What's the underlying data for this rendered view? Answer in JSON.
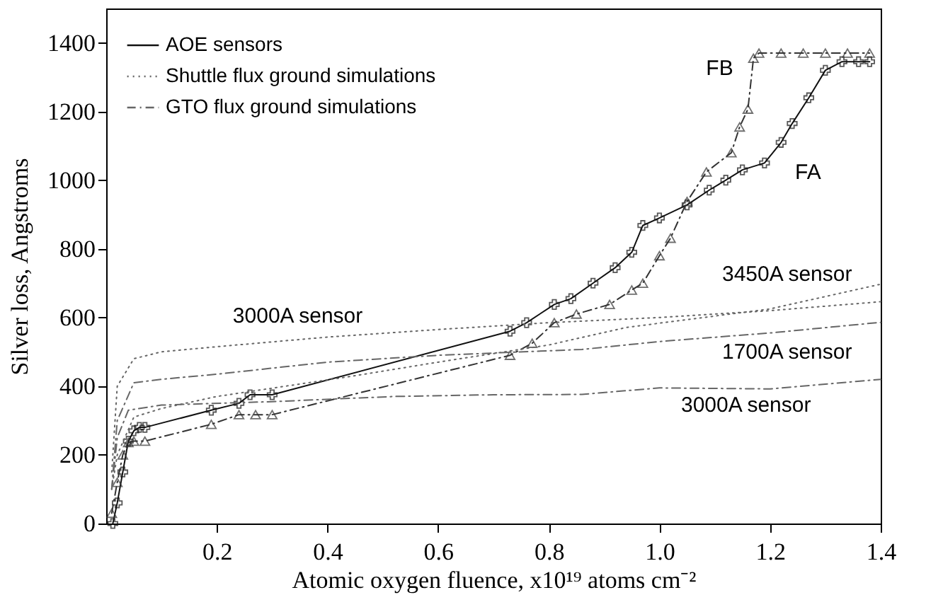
{
  "chart_data": {
    "type": "line",
    "xlabel": "Atomic oxygen fluence, x10¹⁹ atoms cm⁻²",
    "ylabel": "Silver loss, Angstroms",
    "xlim": [
      0,
      1.4
    ],
    "xticks": [
      0.2,
      0.4,
      0.6,
      0.8,
      {
        "value": 1,
        "label": "1.0"
      },
      1.2,
      1.4
    ],
    "ylim": [
      0,
      1500
    ],
    "yticks": [
      0,
      200,
      400,
      600,
      800,
      1000,
      1200,
      1400
    ],
    "grid": false,
    "legend": "top left",
    "series": [
      {
        "name": "AOE sensors",
        "color": "#111111",
        "marker": "cross",
        "line_style": "solid",
        "x": [
          0.012,
          0.02,
          0.03,
          0.04,
          0.05,
          0.06,
          0.07,
          0.19,
          0.24,
          0.26,
          0.3,
          0.73,
          0.76,
          0.81,
          0.84,
          0.88,
          0.92,
          0.95,
          0.97,
          1.0,
          1.05,
          1.09,
          1.12,
          1.15,
          1.19,
          1.22,
          1.24,
          1.27,
          1.3,
          1.33,
          1.36,
          1.38
        ],
        "values": [
          0,
          60,
          150,
          240,
          270,
          280,
          280,
          330,
          350,
          375,
          375,
          560,
          585,
          638,
          655,
          700,
          745,
          790,
          868,
          890,
          928,
          971,
          1000,
          1030,
          1050,
          1110,
          1165,
          1240,
          1320,
          1345,
          1345,
          1345
        ]
      },
      {
        "color": "#333333",
        "marker": "triangle",
        "line_style": "dashed",
        "x": [
          0.01,
          0.02,
          0.03,
          0.04,
          0.05,
          0.07,
          0.19,
          0.24,
          0.27,
          0.3,
          0.73,
          0.77,
          0.81,
          0.85,
          0.91,
          0.95,
          0.97,
          1.0,
          1.02,
          1.05,
          1.085,
          1.13,
          1.145,
          1.16,
          1.17,
          1.18,
          1.22,
          1.26,
          1.3,
          1.34,
          1.38
        ],
        "values": [
          30,
          120,
          200,
          236,
          240,
          240,
          289,
          317,
          317,
          317,
          490,
          525,
          585,
          610,
          638,
          680,
          700,
          780,
          831,
          938,
          1024,
          1080,
          1155,
          1207,
          1355,
          1370,
          1370,
          1370,
          1370,
          1370,
          1370
        ]
      },
      {
        "name": "Shuttle flux ground simulations",
        "color": "#666666",
        "marker": "none",
        "line_style": "dotted",
        "x": [
          0.01,
          0.02,
          0.05,
          0.1,
          0.2,
          0.4,
          0.6,
          0.8,
          1.0,
          1.2,
          1.4
        ],
        "values": [
          150,
          400,
          480,
          500,
          515,
          543,
          565,
          585,
          600,
          620,
          646
        ]
      },
      {
        "color": "#666666",
        "marker": "none",
        "line_style": "dotted",
        "x": [
          0.01,
          0.02,
          0.05,
          0.1,
          0.2,
          0.44,
          0.6,
          0.8,
          0.94,
          1.2,
          1.4
        ],
        "values": [
          100,
          200,
          310,
          335,
          370,
          428,
          470,
          520,
          571,
          625,
          697
        ]
      },
      {
        "name": "GTO flux ground simulations",
        "color": "#666666",
        "marker": "none",
        "line_style": "dashed",
        "x": [
          0.01,
          0.02,
          0.05,
          0.1,
          0.2,
          0.4,
          0.6,
          0.86,
          1.0,
          1.2,
          1.4
        ],
        "values": [
          100,
          300,
          410,
          420,
          435,
          470,
          490,
          507,
          530,
          555,
          586
        ]
      },
      {
        "color": "#666666",
        "marker": "none",
        "line_style": "dashed",
        "x": [
          0.01,
          0.02,
          0.04,
          0.1,
          0.3,
          0.52,
          0.7,
          0.86,
          1.0,
          1.2,
          1.4
        ],
        "values": [
          100,
          250,
          330,
          345,
          355,
          370,
          375,
          376,
          395,
          392,
          420
        ]
      }
    ],
    "annotations": [
      {
        "text": "3000A sensor",
        "x": 0.4,
        "y": 543
      },
      {
        "text": "3450A sensor",
        "x": 1.2,
        "y": 625
      },
      {
        "text": "1700A sensor",
        "x": 1.2,
        "y": 555
      },
      {
        "text": "3000A sensor",
        "x": 1.2,
        "y": 392
      },
      {
        "text": "FA",
        "x": 1.22,
        "y": 1110
      },
      {
        "text": "FB",
        "x": 1.16,
        "y": 1207
      }
    ]
  }
}
